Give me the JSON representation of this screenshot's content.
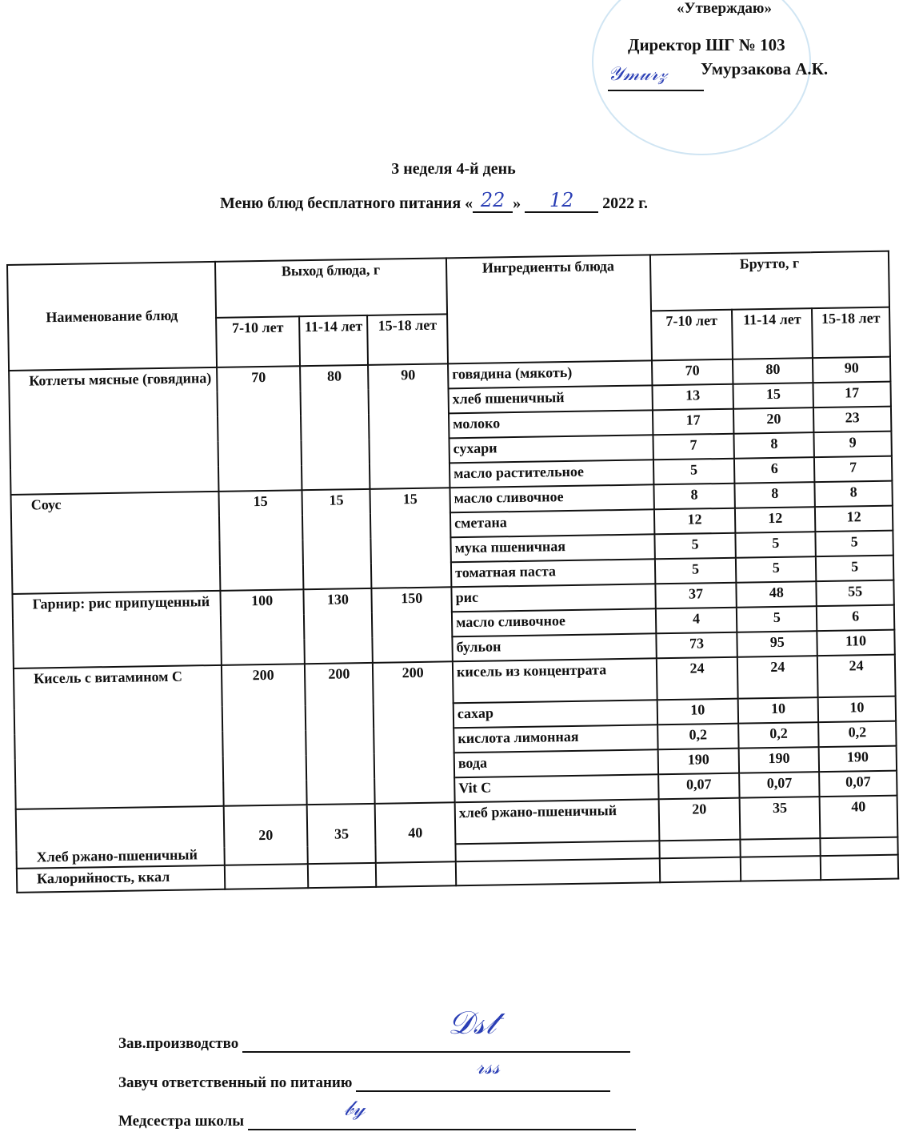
{
  "approval": {
    "approve": "«Утверждаю»",
    "director_title": "Директор ШГ № 103",
    "director_name": "Умурзакова А.К."
  },
  "header": {
    "week_day": "3 неделя 4-й день",
    "menu_prefix": "Меню блюд бесплатного питания «",
    "day": "22",
    "month": "12",
    "year_suffix": "2022 г."
  },
  "table": {
    "col_name": "Наименование блюд",
    "col_yield": "Выход блюда, г",
    "col_ingredients": "Ингредиенты блюда",
    "col_brutto": "Брутто, г",
    "ages": [
      "7-10 лет",
      "11-14 лет",
      "15-18 лет"
    ],
    "dishes": [
      {
        "name": "Котлеты мясные (говядина)",
        "yield": [
          "70",
          "80",
          "90"
        ],
        "ingredients": [
          {
            "name": "говядина (мякоть)",
            "brutto": [
              "70",
              "80",
              "90"
            ]
          },
          {
            "name": "хлеб пшеничный",
            "brutto": [
              "13",
              "15",
              "17"
            ]
          },
          {
            "name": "молоко",
            "brutto": [
              "17",
              "20",
              "23"
            ]
          },
          {
            "name": "сухари",
            "brutto": [
              "7",
              "8",
              "9"
            ]
          },
          {
            "name": "масло растительное",
            "brutto": [
              "5",
              "6",
              "7"
            ]
          }
        ]
      },
      {
        "name": "Соус",
        "yield": [
          "15",
          "15",
          "15"
        ],
        "ingredients": [
          {
            "name": "масло сливочное",
            "brutto": [
              "8",
              "8",
              "8"
            ]
          },
          {
            "name": "сметана",
            "brutto": [
              "12",
              "12",
              "12"
            ]
          },
          {
            "name": "мука пшеничная",
            "brutto": [
              "5",
              "5",
              "5"
            ]
          },
          {
            "name": "томатная паста",
            "brutto": [
              "5",
              "5",
              "5"
            ]
          }
        ]
      },
      {
        "name": "Гарнир: рис припущенный",
        "yield": [
          "100",
          "130",
          "150"
        ],
        "ingredients": [
          {
            "name": "рис",
            "brutto": [
              "37",
              "48",
              "55"
            ]
          },
          {
            "name": "масло сливочное",
            "brutto": [
              "4",
              "5",
              "6"
            ]
          },
          {
            "name": "бульон",
            "brutto": [
              "73",
              "95",
              "110"
            ]
          }
        ]
      },
      {
        "name": "Кисель с витамином С",
        "yield": [
          "200",
          "200",
          "200"
        ],
        "ingredients": [
          {
            "name": "кисель из концентрата",
            "brutto": [
              "24",
              "24",
              "24"
            ]
          },
          {
            "name": "сахар",
            "brutto": [
              "10",
              "10",
              "10"
            ]
          },
          {
            "name": "кислота лимонная",
            "brutto": [
              "0,2",
              "0,2",
              "0,2"
            ]
          },
          {
            "name": "вода",
            "brutto": [
              "190",
              "190",
              "190"
            ]
          },
          {
            "name": "Vit C",
            "brutto": [
              "0,07",
              "0,07",
              "0,07"
            ]
          }
        ]
      },
      {
        "name": "Хлеб ржано-пшеничный",
        "yield": [
          "20",
          "35",
          "40"
        ],
        "ingredients": [
          {
            "name": "хлеб ржано-пшеничный",
            "brutto": [
              "20",
              "35",
              "40"
            ]
          }
        ]
      }
    ],
    "calories_label": "Калорийность, ккал"
  },
  "signatures": [
    {
      "label": "Зав.производство"
    },
    {
      "label": "Завуч ответственный по питанию"
    },
    {
      "label": "Медсестра школы"
    }
  ]
}
